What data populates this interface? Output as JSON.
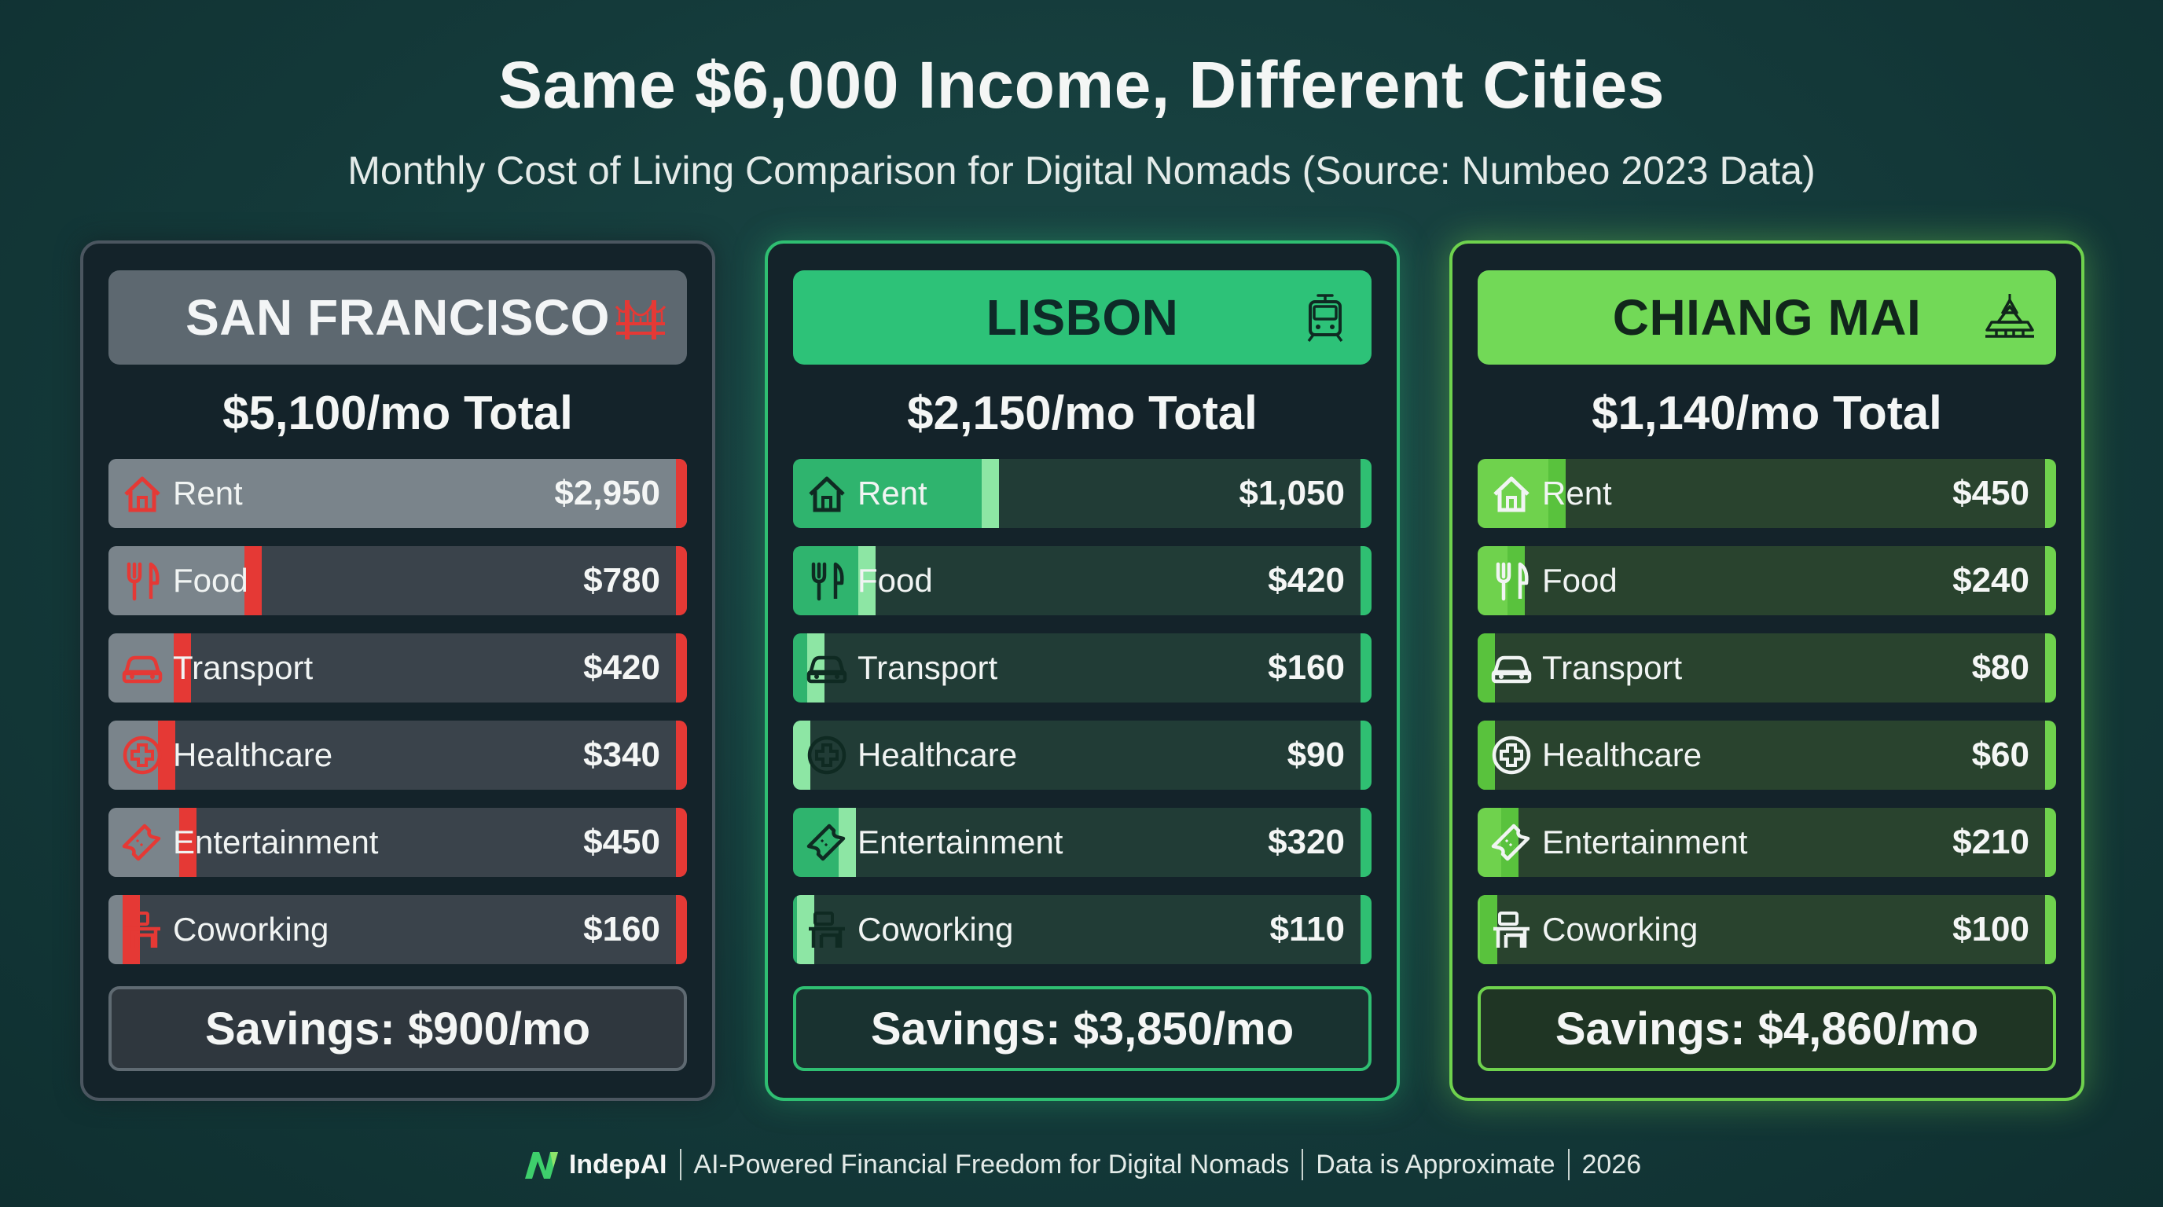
{
  "title": "Same $6,000 Income, Different Cities",
  "subtitle": "Monthly Cost of Living Comparison for Digital Nomads (Source: Numbeo 2023 Data)",
  "chart_data": {
    "type": "bar",
    "categories": [
      "Rent",
      "Food",
      "Transport",
      "Healthcare",
      "Entertainment",
      "Coworking"
    ],
    "series": [
      {
        "name": "SAN FRANCISCO",
        "total_label": "$5,100/mo Total",
        "savings_label": "Savings: $900/mo",
        "values": [
          2950,
          780,
          420,
          340,
          450,
          160
        ],
        "value_labels": [
          "$2,950",
          "$780",
          "$420",
          "$340",
          "$450",
          "$160"
        ],
        "color": "#e53935",
        "header_color": "#5d6870",
        "landmark_icon": "golden-gate-bridge-icon"
      },
      {
        "name": "LISBON",
        "total_label": "$2,150/mo Total",
        "savings_label": "Savings: $3,850/mo",
        "values": [
          1050,
          420,
          160,
          90,
          320,
          110
        ],
        "value_labels": [
          "$1,050",
          "$420",
          "$160",
          "$90",
          "$320",
          "$110"
        ],
        "color": "#2fbf72",
        "header_color": "#2dc278",
        "landmark_icon": "tram-icon"
      },
      {
        "name": "CHIANG MAI",
        "total_label": "$1,140/mo Total",
        "savings_label": "Savings: $4,860/mo",
        "values": [
          450,
          240,
          80,
          60,
          210,
          100
        ],
        "value_labels": [
          "$450",
          "$240",
          "$80",
          "$60",
          "$210",
          "$100"
        ],
        "color": "#6fd24d",
        "header_color": "#72d957",
        "landmark_icon": "temple-icon"
      }
    ],
    "category_icons": [
      "house-icon",
      "fork-knife-icon",
      "car-icon",
      "medical-cross-icon",
      "ticket-icon",
      "desk-icon"
    ],
    "xlim": [
      0,
      2950
    ]
  },
  "footer": {
    "logo_icon": "indepai-logo-icon",
    "brand": "IndepAI",
    "tagline": "AI-Powered Financial Freedom for Digital Nomads",
    "note": "Data is Approximate",
    "year": "2026"
  }
}
